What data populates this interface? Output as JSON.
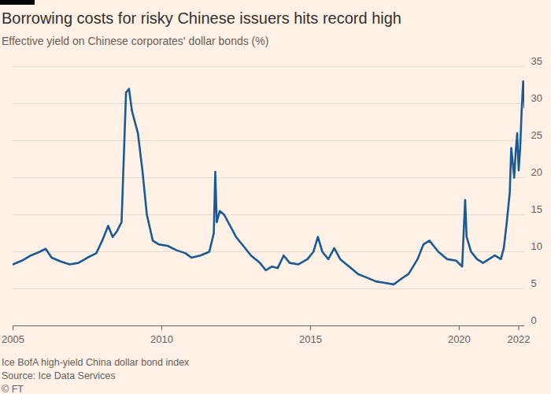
{
  "chart_data": {
    "type": "line",
    "title": "Borrowing costs for risky Chinese issuers hits record high",
    "subtitle": "Effective yield on Chinese corporates' dollar bonds (%)",
    "notes": [
      "Ice BofA high-yield China dollar bond index",
      "Source: Ice Data Services",
      "© FT"
    ],
    "color": "#1a5a96",
    "x": [
      2005.0,
      2005.3,
      2005.6,
      2005.9,
      2006.1,
      2006.3,
      2006.6,
      2006.9,
      2007.2,
      2007.5,
      2007.8,
      2008.0,
      2008.2,
      2008.35,
      2008.5,
      2008.65,
      2008.8,
      2008.9,
      2009.0,
      2009.1,
      2009.2,
      2009.35,
      2009.5,
      2009.7,
      2009.9,
      2010.2,
      2010.5,
      2010.8,
      2011.0,
      2011.3,
      2011.6,
      2011.75,
      2011.8,
      2011.85,
      2011.95,
      2012.1,
      2012.3,
      2012.5,
      2012.8,
      2013.0,
      2013.3,
      2013.5,
      2013.7,
      2013.9,
      2014.1,
      2014.3,
      2014.6,
      2014.9,
      2015.1,
      2015.25,
      2015.4,
      2015.6,
      2015.8,
      2016.0,
      2016.3,
      2016.6,
      2016.9,
      2017.2,
      2017.5,
      2017.8,
      2018.0,
      2018.3,
      2018.6,
      2018.8,
      2019.0,
      2019.3,
      2019.6,
      2019.9,
      2020.1,
      2020.2,
      2020.25,
      2020.4,
      2020.6,
      2020.8,
      2021.0,
      2021.2,
      2021.4,
      2021.5,
      2021.6,
      2021.7,
      2021.75,
      2021.8,
      2021.85,
      2021.9,
      2021.95,
      2022.0,
      2022.05,
      2022.1,
      2022.15,
      2022.2
    ],
    "values": [
      8.3,
      8.8,
      9.5,
      10.0,
      10.4,
      9.2,
      8.7,
      8.3,
      8.5,
      9.2,
      9.8,
      11.5,
      13.5,
      12.0,
      12.8,
      14.0,
      31.5,
      32.0,
      29.0,
      27.5,
      26.0,
      21.0,
      15.0,
      11.5,
      11.0,
      10.8,
      10.2,
      9.8,
      9.2,
      9.5,
      10.0,
      12.5,
      20.8,
      14.0,
      15.5,
      15.0,
      13.5,
      12.0,
      10.5,
      9.5,
      8.5,
      7.5,
      8.0,
      7.8,
      9.5,
      8.5,
      8.3,
      9.0,
      10.0,
      12.0,
      10.0,
      9.0,
      10.5,
      9.0,
      8.0,
      7.0,
      6.5,
      6.0,
      5.8,
      5.6,
      6.2,
      7.0,
      9.0,
      11.0,
      11.5,
      10.0,
      9.0,
      8.8,
      8.0,
      17.0,
      12.0,
      10.0,
      9.0,
      8.5,
      9.0,
      9.5,
      9.0,
      10.5,
      14.0,
      18.0,
      24.0,
      22.0,
      20.0,
      23.5,
      26.0,
      21.0,
      24.0,
      29.0,
      33.0,
      29.5
    ],
    "xlim": [
      2005,
      2022.2
    ],
    "xticks": [
      2005,
      2010,
      2015,
      2020,
      2022
    ],
    "ylim": [
      0,
      35
    ],
    "yticks": [
      0,
      5,
      10,
      15,
      20,
      25,
      30,
      35
    ],
    "grid": true
  }
}
